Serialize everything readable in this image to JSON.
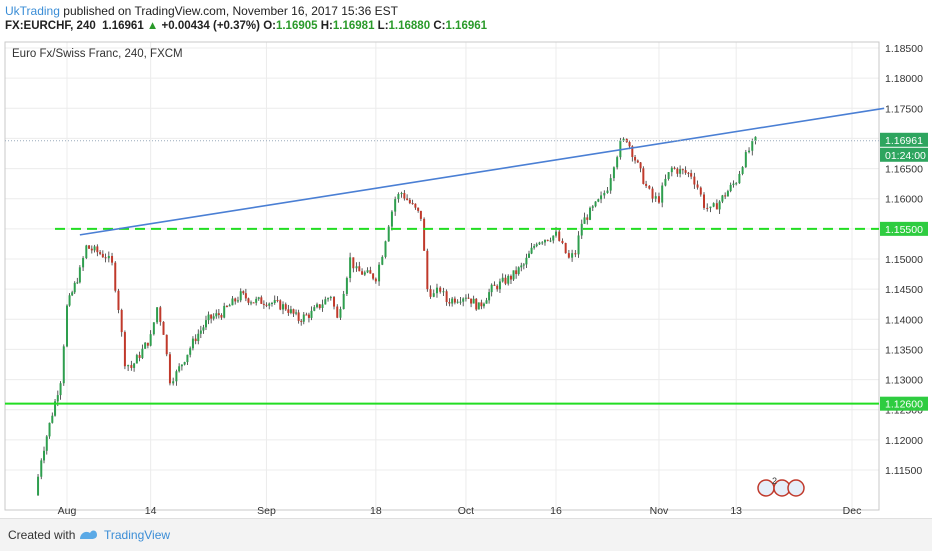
{
  "header": {
    "author": "UkTrading",
    "published": "published on TradingView.com, November 16, 2017 15:36 EST",
    "symbol": "FX:EURCHF, 240",
    "last": "1.16961",
    "change": "+0.00434 (+0.37%)",
    "o_label": "O:",
    "o_value": "1.16905",
    "h_label": "H:",
    "h_value": "1.16981",
    "l_label": "L:",
    "l_value": "1.16880",
    "c_label": "C:",
    "c_value": "1.16961"
  },
  "footer": {
    "created_with": "Created with",
    "brand": "TradingView"
  },
  "chart_data": {
    "type": "candlestick",
    "title": "Euro Fx/Swiss Franc, 240, FXCM",
    "x_tick_labels": [
      "Aug",
      "14",
      "Sep",
      "18",
      "Oct",
      "16",
      "Nov",
      "13",
      "Dec"
    ],
    "y_tick_labels": [
      "1.18500",
      "1.18000",
      "1.17500",
      "1.17000",
      "1.16500",
      "1.16000",
      "1.15500",
      "1.15000",
      "1.14500",
      "1.14000",
      "1.13500",
      "1.13000",
      "1.12500",
      "1.12000",
      "1.11500"
    ],
    "ylim": [
      1.11,
      1.1875
    ],
    "price_path": [
      {
        "date": "2017-07-27",
        "price": 1.1108
      },
      {
        "date": "2017-07-28",
        "price": 1.117
      },
      {
        "date": "2017-07-31",
        "price": 1.13
      },
      {
        "date": "2017-08-01",
        "price": 1.142
      },
      {
        "date": "2017-08-03",
        "price": 1.148
      },
      {
        "date": "2017-08-04",
        "price": 1.152
      },
      {
        "date": "2017-08-07",
        "price": 1.1505
      },
      {
        "date": "2017-08-08",
        "price": 1.149
      },
      {
        "date": "2017-08-09",
        "price": 1.142
      },
      {
        "date": "2017-08-10",
        "price": 1.133
      },
      {
        "date": "2017-08-11",
        "price": 1.132
      },
      {
        "date": "2017-08-14",
        "price": 1.137
      },
      {
        "date": "2017-08-15",
        "price": 1.142
      },
      {
        "date": "2017-08-16",
        "price": 1.138
      },
      {
        "date": "2017-08-17",
        "price": 1.13
      },
      {
        "date": "2017-08-18",
        "price": 1.131
      },
      {
        "date": "2017-08-21",
        "price": 1.137
      },
      {
        "date": "2017-08-23",
        "price": 1.14
      },
      {
        "date": "2017-08-25",
        "price": 1.141
      },
      {
        "date": "2017-08-28",
        "price": 1.144
      },
      {
        "date": "2017-08-30",
        "price": 1.143
      },
      {
        "date": "2017-09-01",
        "price": 1.143
      },
      {
        "date": "2017-09-04",
        "price": 1.142
      },
      {
        "date": "2017-09-06",
        "price": 1.14
      },
      {
        "date": "2017-09-08",
        "price": 1.141
      },
      {
        "date": "2017-09-11",
        "price": 1.144
      },
      {
        "date": "2017-09-12",
        "price": 1.14
      },
      {
        "date": "2017-09-13",
        "price": 1.145
      },
      {
        "date": "2017-09-14",
        "price": 1.15
      },
      {
        "date": "2017-09-15",
        "price": 1.148
      },
      {
        "date": "2017-09-18",
        "price": 1.147
      },
      {
        "date": "2017-09-19",
        "price": 1.151
      },
      {
        "date": "2017-09-20",
        "price": 1.156
      },
      {
        "date": "2017-09-21",
        "price": 1.16
      },
      {
        "date": "2017-09-22",
        "price": 1.161
      },
      {
        "date": "2017-09-25",
        "price": 1.157
      },
      {
        "date": "2017-09-26",
        "price": 1.145
      },
      {
        "date": "2017-09-27",
        "price": 1.144
      },
      {
        "date": "2017-09-28",
        "price": 1.145
      },
      {
        "date": "2017-09-29",
        "price": 1.143
      },
      {
        "date": "2017-10-02",
        "price": 1.144
      },
      {
        "date": "2017-10-04",
        "price": 1.142
      },
      {
        "date": "2017-10-06",
        "price": 1.145
      },
      {
        "date": "2017-10-09",
        "price": 1.147
      },
      {
        "date": "2017-10-11",
        "price": 1.149
      },
      {
        "date": "2017-10-13",
        "price": 1.153
      },
      {
        "date": "2017-10-16",
        "price": 1.154
      },
      {
        "date": "2017-10-17",
        "price": 1.152
      },
      {
        "date": "2017-10-18",
        "price": 1.15
      },
      {
        "date": "2017-10-19",
        "price": 1.151
      },
      {
        "date": "2017-10-20",
        "price": 1.156
      },
      {
        "date": "2017-10-23",
        "price": 1.16
      },
      {
        "date": "2017-10-24",
        "price": 1.162
      },
      {
        "date": "2017-10-25",
        "price": 1.166
      },
      {
        "date": "2017-10-26",
        "price": 1.169
      },
      {
        "date": "2017-10-27",
        "price": 1.17
      },
      {
        "date": "2017-10-30",
        "price": 1.162
      },
      {
        "date": "2017-10-31",
        "price": 1.16
      },
      {
        "date": "2017-11-01",
        "price": 1.16
      },
      {
        "date": "2017-11-02",
        "price": 1.163
      },
      {
        "date": "2017-11-03",
        "price": 1.165
      },
      {
        "date": "2017-11-06",
        "price": 1.164
      },
      {
        "date": "2017-11-07",
        "price": 1.162
      },
      {
        "date": "2017-11-08",
        "price": 1.159
      },
      {
        "date": "2017-11-09",
        "price": 1.158
      },
      {
        "date": "2017-11-10",
        "price": 1.159
      },
      {
        "date": "2017-11-13",
        "price": 1.163
      },
      {
        "date": "2017-11-14",
        "price": 1.166
      },
      {
        "date": "2017-11-15",
        "price": 1.168
      },
      {
        "date": "2017-11-16",
        "price": 1.1696
      }
    ],
    "horizontal_lines": [
      {
        "price": 1.155,
        "label": "1.15500",
        "style": "dashed",
        "color": "#22dd22"
      },
      {
        "price": 1.126,
        "label": "1.12600",
        "style": "solid",
        "color": "#22dd22"
      }
    ],
    "trendline": {
      "color": "#4a7fd4",
      "start": {
        "date": "2017-08-03",
        "price": 1.154
      },
      "end": {
        "date": "2017-12-06",
        "price": 1.175
      }
    },
    "last_price_label": "1.16961",
    "countdown_label": "01:24:00",
    "colors": {
      "up": "#2e9e4e",
      "down": "#c0392b",
      "axis_label_bg": "#2ecc40",
      "price_label_bg": "#2ea55f"
    },
    "grid": true
  }
}
